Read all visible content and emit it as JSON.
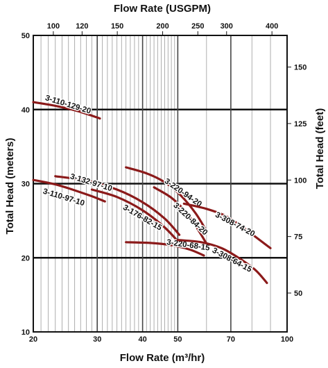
{
  "chart_data": {
    "type": "line",
    "x_scale": "log",
    "xlabel": "Flow Rate (m³/hr)",
    "x2label": "Flow Rate (USGPM)",
    "ylabel": "Total Head (meters)",
    "y2label": "Total Head (feet)",
    "xlim": [
      20,
      100
    ],
    "ylim": [
      10,
      50
    ],
    "y2lim": [
      32.8,
      164
    ],
    "x_ticks": [
      20,
      30,
      40,
      50,
      70,
      100
    ],
    "x_tick_labels": [
      "20",
      "30",
      "40",
      "50",
      "70",
      "100"
    ],
    "x2_ticks": [
      100,
      120,
      150,
      200,
      250,
      300,
      400
    ],
    "x2_tick_labels": [
      "100",
      "120",
      "150",
      "200",
      "250",
      "300",
      "400"
    ],
    "y_ticks": [
      10,
      20,
      30,
      40,
      50
    ],
    "y_tick_labels": [
      "10",
      "20",
      "30",
      "40",
      "50"
    ],
    "y2_ticks": [
      50,
      75,
      100,
      125,
      150
    ],
    "y2_tick_labels": [
      "50",
      "75",
      "100",
      "125",
      "150"
    ],
    "grid": true,
    "series": [
      {
        "name": "3-110-129-20",
        "color": "#8b1a1a",
        "points": [
          [
            20,
            41.0
          ],
          [
            23,
            40.5
          ],
          [
            26.5,
            39.8
          ],
          [
            30.5,
            38.8
          ]
        ],
        "label_pos": [
          21.5,
          41.3
        ],
        "label_angle": 17
      },
      {
        "name": "3-110-97-10",
        "color": "#8b1a1a",
        "points": [
          [
            20,
            30.5
          ],
          [
            23,
            29.9
          ],
          [
            26,
            29.1
          ],
          [
            29,
            28.3
          ],
          [
            31.5,
            27.6
          ]
        ],
        "label_pos": [
          21.2,
          28.7
        ],
        "label_angle": 17
      },
      {
        "name": "3-132-97-10",
        "color": "#8b1a1a",
        "points": [
          [
            23,
            31.0
          ],
          [
            28,
            30.4
          ],
          [
            34,
            29.2
          ],
          [
            40,
            27.5
          ],
          [
            46,
            25.3
          ],
          [
            50.5,
            23.1
          ]
        ],
        "label_pos": [
          25.2,
          30.7
        ],
        "label_angle": 17
      },
      {
        "name": "3-176-82-15",
        "color": "#8b1a1a",
        "points": [
          [
            29,
            29.2
          ],
          [
            34,
            28.2
          ],
          [
            40,
            26.4
          ],
          [
            46,
            24.1
          ],
          [
            50.5,
            22.0
          ]
        ],
        "label_pos": [
          35.2,
          26.6
        ],
        "label_angle": 30
      },
      {
        "name": "3-220-94-20",
        "color": "#8b1a1a",
        "points": [
          [
            36,
            32.2
          ],
          [
            41,
            31.4
          ],
          [
            46,
            30.2
          ],
          [
            51,
            28.4
          ],
          [
            56,
            26.0
          ],
          [
            60,
            23.6
          ]
        ],
        "label_pos": [
          45.8,
          30.2
        ],
        "label_angle": 35
      },
      {
        "name": "3-220-84-20",
        "color": "#8b1a1a",
        "points": [
          [
            43,
            29.5
          ],
          [
            48,
            28.1
          ],
          [
            53,
            26.0
          ],
          [
            57,
            23.7
          ],
          [
            60,
            21.9
          ]
        ],
        "label_pos": [
          48.5,
          27.0
        ],
        "label_angle": 43
      },
      {
        "name": "3-220-68-15",
        "color": "#8b1a1a",
        "points": [
          [
            36,
            22.1
          ],
          [
            42,
            22.0
          ],
          [
            48,
            21.7
          ],
          [
            54,
            21.1
          ],
          [
            59,
            20.3
          ]
        ],
        "label_pos": [
          46.5,
          21.8
        ],
        "label_angle": 8
      },
      {
        "name": "3-308-74-20",
        "color": "#8b1a1a",
        "points": [
          [
            52,
            27.3
          ],
          [
            60,
            26.6
          ],
          [
            68,
            25.6
          ],
          [
            76,
            24.0
          ],
          [
            84,
            22.4
          ],
          [
            90,
            21.3
          ]
        ],
        "label_pos": [
          63.2,
          25.6
        ],
        "label_angle": 28
      },
      {
        "name": "3-308-64-15",
        "color": "#8b1a1a",
        "points": [
          [
            50,
            22.4
          ],
          [
            58,
            22.1
          ],
          [
            66,
            21.3
          ],
          [
            74,
            19.9
          ],
          [
            82,
            18.3
          ],
          [
            88,
            16.6
          ]
        ],
        "label_pos": [
          62.0,
          20.8
        ],
        "label_angle": 28
      }
    ]
  }
}
